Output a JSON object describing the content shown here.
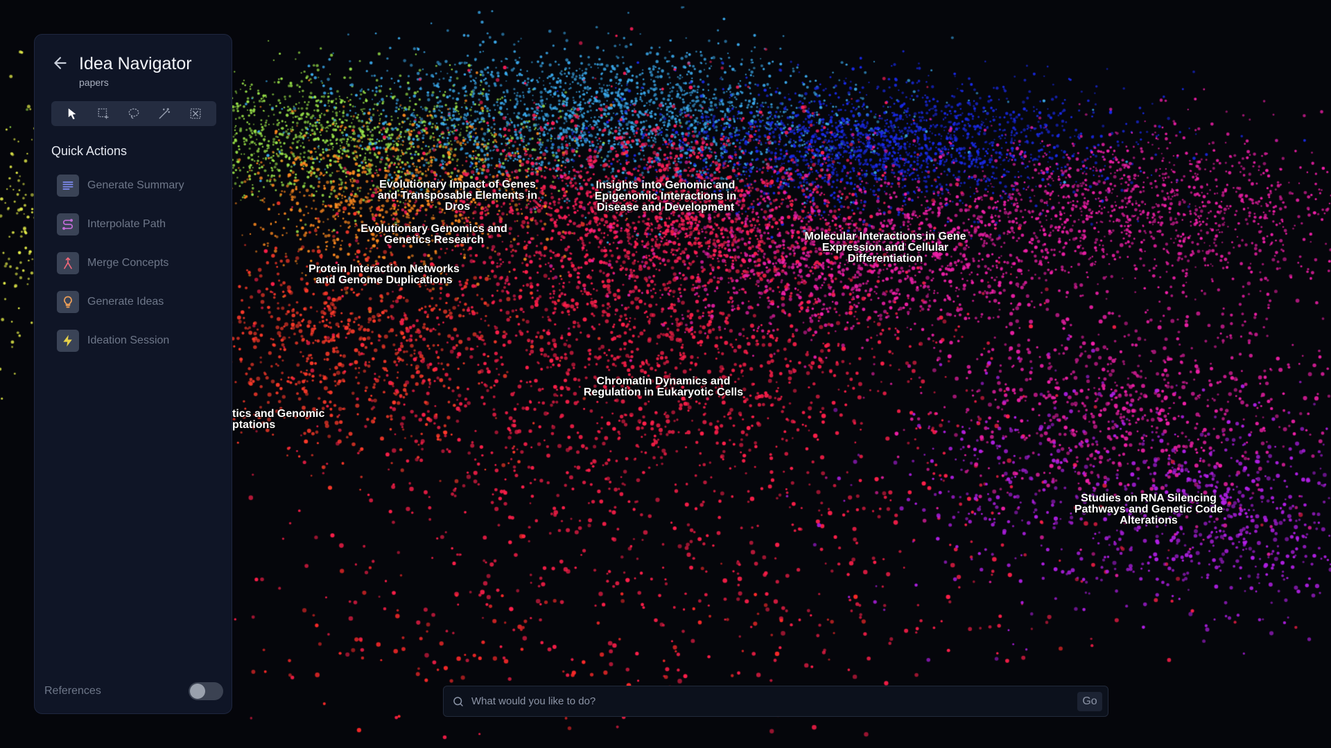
{
  "navigator": {
    "title": "Idea Navigator",
    "subtitle": "papers"
  },
  "toolbar": {
    "tools": [
      {
        "icon": "pointer-icon",
        "active": true
      },
      {
        "icon": "box-select-icon",
        "active": false
      },
      {
        "icon": "lasso-icon",
        "active": false
      },
      {
        "icon": "magic-wand-icon",
        "active": false
      },
      {
        "icon": "clear-selection-icon",
        "active": false
      }
    ]
  },
  "quick_actions": {
    "heading": "Quick Actions",
    "items": [
      {
        "label": "Generate Summary",
        "icon": "summary-icon",
        "color": "#7f8cf2"
      },
      {
        "label": "Interpolate Path",
        "icon": "path-icon",
        "color": "#c06bd6"
      },
      {
        "label": "Merge Concepts",
        "icon": "merge-icon",
        "color": "#f0687a"
      },
      {
        "label": "Generate Ideas",
        "icon": "lightbulb-icon",
        "color": "#f0a058"
      },
      {
        "label": "Ideation Session",
        "icon": "lightning-icon",
        "color": "#e8d24a"
      }
    ]
  },
  "references": {
    "label": "References",
    "enabled": false
  },
  "command": {
    "placeholder": "What would you like to do?",
    "go_label": "Go"
  },
  "clusters": [
    {
      "label": "Evolutionary Impact of Genes and Transposable Elements in Dros",
      "color": "#ff8a1f"
    },
    {
      "label": "Evolutionary Genomics and Genetics Research",
      "color": "#ff7a1a"
    },
    {
      "label": "Protein Interaction Networks and Genome Duplications",
      "color": "#ff3a2a"
    },
    {
      "label": "Insights into Genomic and Epigenomic Interactions in Disease and Development",
      "color": "#ff1f5a"
    },
    {
      "label": "Molecular Interactions in Gene Expression and Cellular Differentiation",
      "color": "#f01fa8"
    },
    {
      "label": "Chromatin Dynamics and Regulation in Eukaryotic Cells",
      "color": "#ff1f4a"
    },
    {
      "label": "Studies on RNA Silencing Pathways and Genetic Code Alterations",
      "color": "#b21fe6"
    },
    {
      "label": "tics and Genomic ptations",
      "color": "#ff2a2a"
    }
  ],
  "background_clusters": [
    {
      "color": "#9be64a"
    },
    {
      "color": "#3aa8ea"
    },
    {
      "color": "#1a2ae6"
    },
    {
      "color": "#e8f04a"
    }
  ]
}
